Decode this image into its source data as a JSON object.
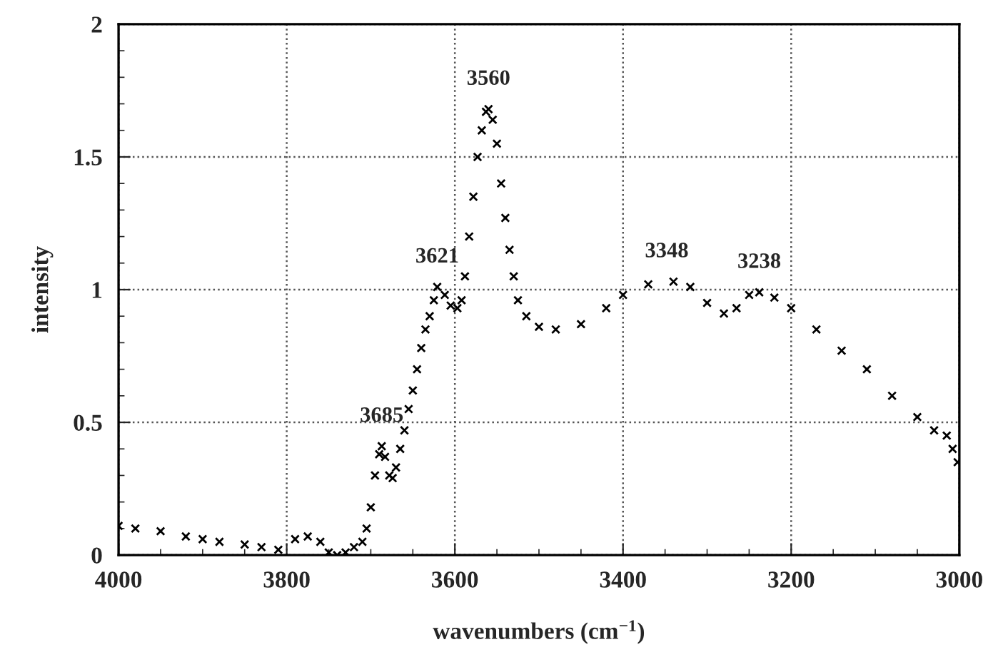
{
  "chart_data": {
    "type": "scatter",
    "xlabel": "wavenumbers (cm$^{−1}$)",
    "ylabel": "intensity",
    "xlim": [
      4000,
      3000
    ],
    "xticks": [
      4000,
      3800,
      3600,
      3400,
      3200,
      3000
    ],
    "ylim": [
      0,
      2
    ],
    "yticks": [
      0,
      0.5,
      1,
      1.5,
      2
    ],
    "grid": true,
    "marker": "cross",
    "series": [
      {
        "color": "#000000",
        "x": [
          4000,
          3980,
          3950,
          3920,
          3900,
          3880,
          3850,
          3830,
          3810,
          3790,
          3775,
          3760,
          3750,
          3740,
          3730,
          3720,
          3710,
          3705,
          3700,
          3695,
          3690,
          3687,
          3683,
          3678,
          3674,
          3670,
          3665,
          3660,
          3655,
          3650,
          3645,
          3640,
          3635,
          3630,
          3625,
          3621,
          3612,
          3605,
          3597,
          3592,
          3588,
          3583,
          3578,
          3573,
          3568,
          3563,
          3560,
          3555,
          3550,
          3545,
          3540,
          3535,
          3530,
          3525,
          3515,
          3500,
          3480,
          3450,
          3420,
          3400,
          3370,
          3340,
          3320,
          3300,
          3280,
          3265,
          3250,
          3238,
          3220,
          3200,
          3170,
          3140,
          3110,
          3080,
          3050,
          3030,
          3015,
          3008,
          3002
        ],
        "values": [
          0.11,
          0.1,
          0.09,
          0.07,
          0.06,
          0.05,
          0.04,
          0.03,
          0.02,
          0.06,
          0.07,
          0.05,
          0.01,
          0.0,
          0.01,
          0.03,
          0.05,
          0.1,
          0.18,
          0.3,
          0.38,
          0.41,
          0.37,
          0.3,
          0.29,
          0.33,
          0.4,
          0.47,
          0.55,
          0.62,
          0.7,
          0.78,
          0.85,
          0.9,
          0.96,
          1.01,
          0.98,
          0.94,
          0.93,
          0.96,
          1.05,
          1.2,
          1.35,
          1.5,
          1.6,
          1.67,
          1.68,
          1.64,
          1.55,
          1.4,
          1.27,
          1.15,
          1.05,
          0.96,
          0.9,
          0.86,
          0.85,
          0.87,
          0.93,
          0.98,
          1.02,
          1.03,
          1.01,
          0.95,
          0.91,
          0.93,
          0.98,
          0.99,
          0.97,
          0.93,
          0.85,
          0.77,
          0.7,
          0.6,
          0.52,
          0.47,
          0.45,
          0.4,
          0.35
        ]
      }
    ],
    "annotations": [
      {
        "text": "3685",
        "x": 3687,
        "y": 0.41
      },
      {
        "text": "3621",
        "x": 3621,
        "y": 1.01
      },
      {
        "text": "3560",
        "x": 3560,
        "y": 1.68
      },
      {
        "text": "3348",
        "x": 3348,
        "y": 1.03
      },
      {
        "text": "3238",
        "x": 3238,
        "y": 0.99
      }
    ]
  }
}
